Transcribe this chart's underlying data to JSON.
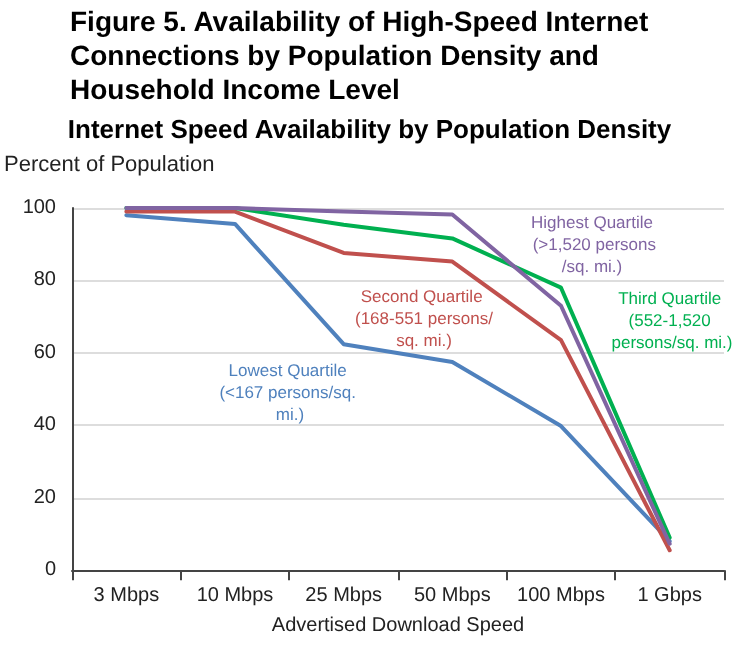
{
  "chart_data": {
    "type": "line",
    "title": "Figure 5. Availability of High-Speed Internet Connections by Population Density and Household Income Level",
    "subtitle": "Internet Speed Availability by Population Density",
    "xlabel": "Advertised Download Speed",
    "ylabel": "Percent of Population",
    "categories": [
      "3 Mbps",
      "10 Mbps",
      "25 Mbps",
      "50 Mbps",
      "100 Mbps",
      "1 Gbps"
    ],
    "series": [
      {
        "name": "Lowest Quartile (<167 persons/sq. mi.)",
        "color": "#4f81bd",
        "values": [
          98,
          95.6,
          62.4,
          57.5,
          39.8,
          8
        ]
      },
      {
        "name": "Second Quartile (168-551 persons/sq. mi.)",
        "color": "#c0504d",
        "values": [
          99,
          99,
          87.6,
          85.2,
          63.5,
          5.5
        ]
      },
      {
        "name": "Third Quartile (552-1,520 persons/sq. mi.)",
        "color": "#00b050",
        "values": [
          100,
          100,
          95.4,
          91.6,
          78,
          9
        ]
      },
      {
        "name": "Highest Quartile (>1,520 persons/sq. mi.)",
        "color": "#8064a2",
        "values": [
          100,
          100,
          99,
          98.2,
          73,
          7.3
        ]
      }
    ],
    "ylim": [
      0,
      100
    ],
    "yticks": [
      0,
      20,
      40,
      60,
      80,
      100
    ],
    "grid": "y",
    "marker": "none",
    "line_style": "solid"
  }
}
